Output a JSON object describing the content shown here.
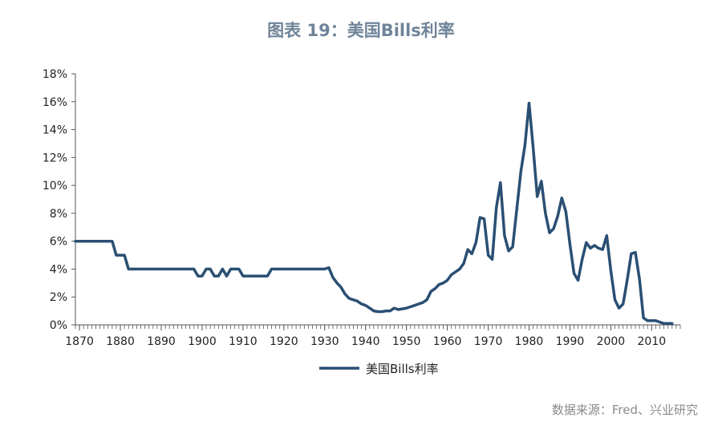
{
  "title": "图表 19：美国Bills利率",
  "source": "数据来源：Fred、兴业研究",
  "colors": {
    "line": "#2a4f73",
    "title": "#6f8499",
    "axis": "#555555"
  },
  "chart_data": {
    "type": "line",
    "title": "图表 19：美国Bills利率",
    "xlabel": "",
    "ylabel": "",
    "xlim": [
      1869,
      2017
    ],
    "ylim": [
      0,
      18
    ],
    "x_ticks": [
      "1870",
      "1880",
      "1890",
      "1900",
      "1910",
      "1920",
      "1930",
      "1940",
      "1950",
      "1960",
      "1970",
      "1980",
      "1990",
      "2000",
      "2010"
    ],
    "y_ticks": [
      "0%",
      "2%",
      "4%",
      "6%",
      "8%",
      "10%",
      "12%",
      "14%",
      "16%",
      "18%"
    ],
    "legend": {
      "position": "bottom"
    },
    "grid": false,
    "series": [
      {
        "name": "美国Bills利率",
        "x": [
          1869,
          1870,
          1871,
          1872,
          1873,
          1874,
          1875,
          1876,
          1877,
          1878,
          1879,
          1880,
          1881,
          1882,
          1885,
          1890,
          1895,
          1897,
          1898,
          1899,
          1900,
          1901,
          1902,
          1903,
          1904,
          1905,
          1906,
          1907,
          1908,
          1909,
          1910,
          1911,
          1912,
          1913,
          1914,
          1915,
          1916,
          1917,
          1918,
          1920,
          1925,
          1927,
          1928,
          1929,
          1930,
          1931,
          1932,
          1933,
          1934,
          1935,
          1936,
          1937,
          1938,
          1939,
          1940,
          1941,
          1942,
          1943,
          1944,
          1945,
          1946,
          1947,
          1948,
          1949,
          1950,
          1951,
          1952,
          1953,
          1954,
          1955,
          1956,
          1957,
          1958,
          1959,
          1960,
          1961,
          1962,
          1963,
          1964,
          1965,
          1966,
          1967,
          1968,
          1969,
          1970,
          1971,
          1972,
          1973,
          1974,
          1975,
          1976,
          1977,
          1978,
          1979,
          1980,
          1981,
          1982,
          1983,
          1984,
          1985,
          1986,
          1987,
          1988,
          1989,
          1990,
          1991,
          1992,
          1993,
          1994,
          1995,
          1996,
          1997,
          1998,
          1999,
          2000,
          2001,
          2002,
          2003,
          2004,
          2005,
          2006,
          2007,
          2008,
          2009,
          2010,
          2011,
          2012,
          2013,
          2014,
          2015
        ],
        "values": [
          6.0,
          6.0,
          6.0,
          6.0,
          6.0,
          6.0,
          6.0,
          6.0,
          6.0,
          6.0,
          5.0,
          5.0,
          5.0,
          4.0,
          4.0,
          4.0,
          4.0,
          4.0,
          4.0,
          3.5,
          3.5,
          4.0,
          4.0,
          3.5,
          3.5,
          4.0,
          3.5,
          4.0,
          4.0,
          4.0,
          3.5,
          3.5,
          3.5,
          3.5,
          3.5,
          3.5,
          3.5,
          4.0,
          4.0,
          4.0,
          4.0,
          4.0,
          4.0,
          4.0,
          4.0,
          4.1,
          3.4,
          3.0,
          2.7,
          2.2,
          1.9,
          1.8,
          1.7,
          1.5,
          1.4,
          1.2,
          1.0,
          0.95,
          0.95,
          1.0,
          1.0,
          1.2,
          1.1,
          1.15,
          1.2,
          1.3,
          1.4,
          1.5,
          1.6,
          1.8,
          2.4,
          2.6,
          2.9,
          3.0,
          3.2,
          3.6,
          3.8,
          4.0,
          4.4,
          5.4,
          5.1,
          5.9,
          7.7,
          7.6,
          5.0,
          4.7,
          8.4,
          10.2,
          6.4,
          5.3,
          5.6,
          8.3,
          11.0,
          12.9,
          15.9,
          12.7,
          9.2,
          10.3,
          8.0,
          6.6,
          6.9,
          7.8,
          9.1,
          8.1,
          5.8,
          3.7,
          3.2,
          4.7,
          5.9,
          5.5,
          5.7,
          5.5,
          5.4,
          6.4,
          3.9,
          1.8,
          1.2,
          1.5,
          3.2,
          5.1,
          5.2,
          3.3,
          0.5,
          0.3,
          0.3,
          0.3,
          0.2,
          0.1,
          0.1,
          0.1
        ]
      }
    ]
  }
}
